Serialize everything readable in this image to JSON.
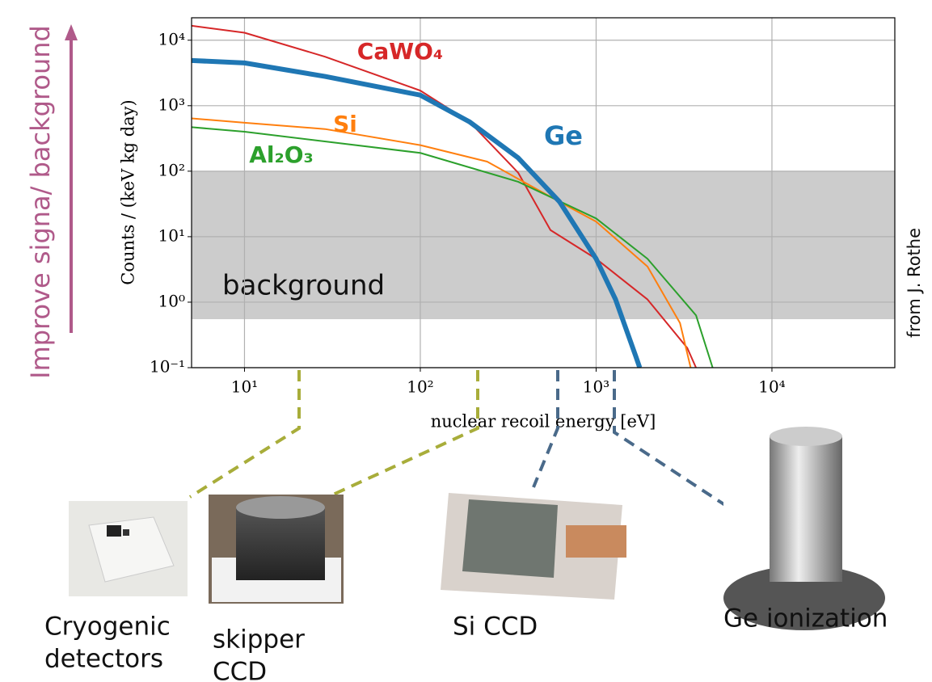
{
  "chart_data": {
    "type": "line",
    "ylabel": "Counts / (keV kg day)",
    "xlabel": "nuclear recoil energy [eV]",
    "xlog": true,
    "ylog": true,
    "grid": true,
    "xlim": [
      5,
      50000
    ],
    "ylim": [
      0.1,
      22000
    ],
    "xticks": [
      {
        "value": 10,
        "label": "10¹"
      },
      {
        "value": 100,
        "label": "10²"
      },
      {
        "value": 1000,
        "label": "10³"
      },
      {
        "value": 10000,
        "label": "10⁴"
      }
    ],
    "yticks": [
      {
        "value": 0.1,
        "label": "10⁻¹"
      },
      {
        "value": 1,
        "label": "10⁰"
      },
      {
        "value": 10,
        "label": "10¹"
      },
      {
        "value": 100,
        "label": "10²"
      },
      {
        "value": 1000,
        "label": "10³"
      },
      {
        "value": 10000,
        "label": "10⁴"
      }
    ],
    "band": {
      "label": "background",
      "range": [
        0.55,
        100
      ],
      "color": "#cccccc"
    },
    "series": [
      {
        "name": "CaWO₄",
        "color": "#d62728",
        "width": 2,
        "x": [
          5,
          10,
          28.7,
          100,
          190,
          360,
          550,
          1000,
          1960,
          3300,
          3700
        ],
        "values": [
          16600,
          13000,
          5600,
          1700,
          570,
          95,
          12.6,
          4.6,
          1.1,
          0.2,
          0.1
        ]
      },
      {
        "name": "Si",
        "color": "#ff7f0e",
        "width": 2,
        "x": [
          5,
          10,
          28.7,
          100,
          240,
          690,
          1000,
          1960,
          3000,
          3450
        ],
        "values": [
          640,
          550,
          440,
          250,
          140,
          29,
          17,
          3.5,
          0.48,
          0.1
        ]
      },
      {
        "name": "Al₂O₃",
        "color": "#2ca02c",
        "width": 2,
        "x": [
          5,
          10,
          100,
          360,
          1000,
          1960,
          3700,
          4600
        ],
        "values": [
          470,
          400,
          190,
          69,
          19,
          4.6,
          0.63,
          0.1
        ]
      },
      {
        "name": "Ge",
        "color": "#1f77b4",
        "width": 6,
        "x": [
          5,
          10,
          28.7,
          100,
          190,
          360,
          620,
          1000,
          1290,
          1680,
          1770
        ],
        "values": [
          4900,
          4500,
          2800,
          1450,
          570,
          160,
          34,
          4.6,
          1.1,
          0.15,
          0.1
        ]
      }
    ]
  },
  "side_label": "Improve signa/ background",
  "credit": "from J. Rothe",
  "photos": [
    {
      "caption": [
        "Cryogenic",
        "detectors"
      ]
    },
    {
      "caption": [
        "skipper",
        "CCD"
      ]
    },
    {
      "caption": [
        "Si CCD"
      ]
    },
    {
      "caption": [
        "Ge ionization"
      ]
    }
  ]
}
